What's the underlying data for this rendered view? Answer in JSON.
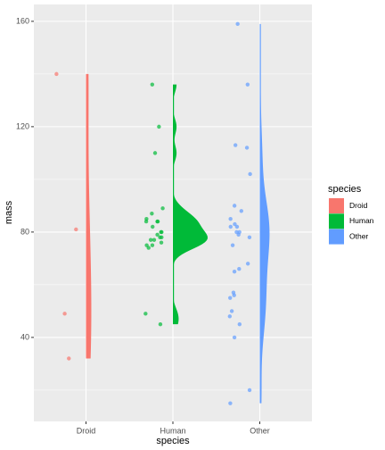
{
  "chart_data": {
    "type": "violin",
    "x_label": "species",
    "y_label": "mass",
    "legend_title": "species",
    "categories": [
      "Droid",
      "Human",
      "Other"
    ],
    "series": [
      {
        "name": "Droid",
        "color": "#F8766D",
        "values": [
          140,
          81,
          49,
          32
        ]
      },
      {
        "name": "Human",
        "color": "#00BA38",
        "values": [
          136,
          120,
          110,
          89,
          87,
          85,
          84,
          84,
          84,
          82,
          80,
          80,
          79,
          78,
          78,
          77,
          77,
          76,
          75,
          75,
          74,
          49,
          45
        ]
      },
      {
        "name": "Other",
        "color": "#619CFF",
        "values": [
          159,
          136,
          113,
          112,
          102,
          90,
          88,
          85,
          83,
          82,
          82,
          80,
          80,
          79,
          78,
          75,
          68,
          66,
          65,
          57,
          56,
          55,
          50,
          48,
          45,
          40,
          20,
          15
        ]
      }
    ],
    "ylim": [
      8.1,
      166.4
    ],
    "yticks": [
      40,
      80,
      120,
      160
    ],
    "grid": true,
    "legend": "right"
  }
}
